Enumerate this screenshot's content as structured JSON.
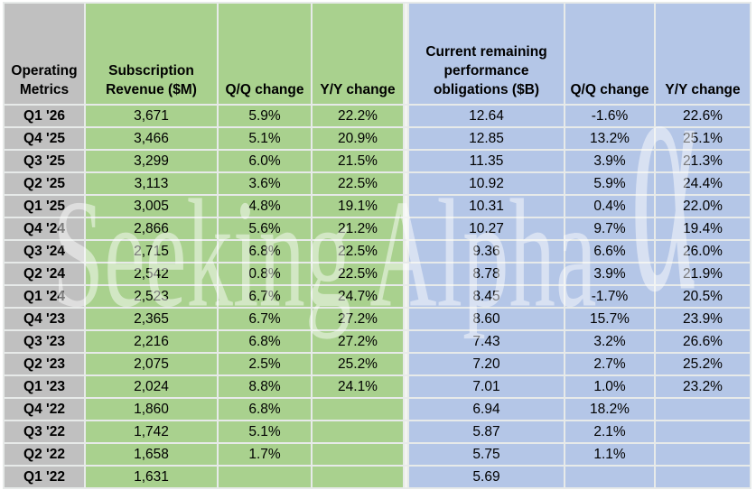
{
  "chart_data": {
    "type": "table",
    "title": "Operating Metrics",
    "columns": [
      {
        "label": "Operating Metrics",
        "group": "label",
        "bg": "#c0c0c0"
      },
      {
        "label": "Subscription Revenue ($M)",
        "group": "subscription",
        "bg": "#a9d18e"
      },
      {
        "label": "Q/Q change",
        "group": "subscription",
        "bg": "#a9d18e"
      },
      {
        "label": "Y/Y change",
        "group": "subscription",
        "bg": "#a9d18e"
      },
      {
        "label": "Current remaining performance obligations ($B)",
        "group": "rpo",
        "bg": "#b4c6e7"
      },
      {
        "label": "Q/Q change",
        "group": "rpo",
        "bg": "#b4c6e7"
      },
      {
        "label": "Y/Y change",
        "group": "rpo",
        "bg": "#b4c6e7"
      }
    ],
    "rows": [
      [
        "Q1 '26",
        "3,671",
        "5.9%",
        "22.2%",
        "12.64",
        "-1.6%",
        "22.6%"
      ],
      [
        "Q4 '25",
        "3,466",
        "5.1%",
        "20.9%",
        "12.85",
        "13.2%",
        "25.1%"
      ],
      [
        "Q3 '25",
        "3,299",
        "6.0%",
        "21.5%",
        "11.35",
        "3.9%",
        "21.3%"
      ],
      [
        "Q2 '25",
        "3,113",
        "3.6%",
        "22.5%",
        "10.92",
        "5.9%",
        "24.4%"
      ],
      [
        "Q1 '25",
        "3,005",
        "4.8%",
        "19.1%",
        "10.31",
        "0.4%",
        "22.0%"
      ],
      [
        "Q4 '24",
        "2,866",
        "5.6%",
        "21.2%",
        "10.27",
        "9.7%",
        "19.4%"
      ],
      [
        "Q3 '24",
        "2,715",
        "6.8%",
        "22.5%",
        "9.36",
        "6.6%",
        "26.0%"
      ],
      [
        "Q2 '24",
        "2,542",
        "0.8%",
        "22.5%",
        "8.78",
        "3.9%",
        "21.9%"
      ],
      [
        "Q1 '24",
        "2,523",
        "6.7%",
        "24.7%",
        "8.45",
        "-1.7%",
        "20.5%"
      ],
      [
        "Q4 '23",
        "2,365",
        "6.7%",
        "27.2%",
        "8.60",
        "15.7%",
        "23.9%"
      ],
      [
        "Q3 '23",
        "2,216",
        "6.8%",
        "27.2%",
        "7.43",
        "3.2%",
        "26.6%"
      ],
      [
        "Q2 '23",
        "2,075",
        "2.5%",
        "25.2%",
        "7.20",
        "2.7%",
        "25.2%"
      ],
      [
        "Q1 '23",
        "2,024",
        "8.8%",
        "24.1%",
        "7.01",
        "1.0%",
        "23.2%"
      ],
      [
        "Q4 '22",
        "1,860",
        "6.8%",
        "",
        "6.94",
        "18.2%",
        ""
      ],
      [
        "Q3 '22",
        "1,742",
        "5.1%",
        "",
        "5.87",
        "2.1%",
        ""
      ],
      [
        "Q2 '22",
        "1,658",
        "1.7%",
        "",
        "5.75",
        "1.1%",
        ""
      ],
      [
        "Q1 '22",
        "1,631",
        "",
        "",
        "5.69",
        "",
        ""
      ]
    ],
    "layout_hints": {
      "header_alignment": "bottom-center",
      "cell_alignment": "center",
      "grid": "on"
    }
  },
  "watermark": {
    "text": "Seeking Alpha",
    "symbol": "α"
  },
  "colors": {
    "label_column_bg": "#c0c0c0",
    "subscription_group_bg": "#a9d18e",
    "rpo_group_bg": "#b4c6e7",
    "gridline": "#e7eae9",
    "text": "#000000",
    "watermark": "rgba(255,255,255,0.48)"
  }
}
